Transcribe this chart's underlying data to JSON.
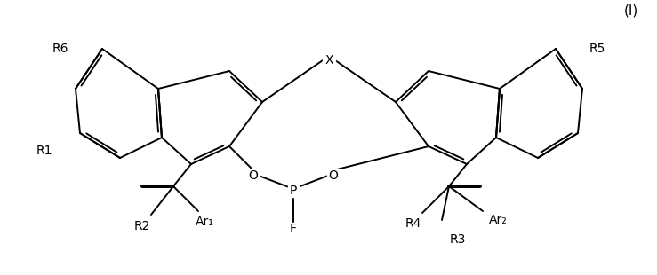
{
  "label_I": "(I)",
  "label_X": "X",
  "label_O_left": "O",
  "label_O_right": "O",
  "label_P": "P",
  "label_F": "F",
  "label_R1": "R1",
  "label_R2": "R2",
  "label_R3": "R3",
  "label_R4": "R4",
  "label_R5": "R5",
  "label_R6": "R6",
  "label_Ar1": "Ar₁",
  "label_Ar2": "Ar₂",
  "background": "#ffffff",
  "lw": 1.4
}
